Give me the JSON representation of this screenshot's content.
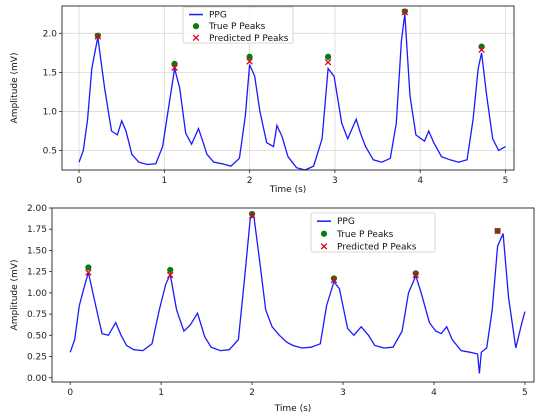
{
  "chart_data": [
    {
      "type": "line",
      "xlabel": "Time (s)",
      "ylabel": "Amplitude (mV)",
      "xlim": [
        -0.2,
        5.1
      ],
      "ylim": [
        0.25,
        2.35
      ],
      "xticks": [
        "0",
        "1",
        "2",
        "3",
        "4",
        "5"
      ],
      "xtick_values": [
        0,
        1,
        2,
        3,
        4,
        5
      ],
      "yticks": [
        "0.5",
        "1.0",
        "1.5",
        "2.0"
      ],
      "ytick_values": [
        0.5,
        1.0,
        1.5,
        2.0
      ],
      "grid": true,
      "legend_position": "top-center",
      "colors": {
        "ppg": "#1a1aff",
        "true_peaks": "#0a7a12",
        "predicted_peaks": "#e0001a"
      },
      "series": [
        {
          "name": "PPG",
          "kind": "line",
          "x": [
            0.0,
            0.05,
            0.1,
            0.15,
            0.22,
            0.3,
            0.38,
            0.45,
            0.5,
            0.55,
            0.62,
            0.7,
            0.8,
            0.9,
            0.98,
            1.05,
            1.12,
            1.18,
            1.25,
            1.32,
            1.4,
            1.45,
            1.5,
            1.58,
            1.68,
            1.78,
            1.88,
            1.95,
            2.0,
            2.06,
            2.12,
            2.2,
            2.28,
            2.32,
            2.38,
            2.45,
            2.55,
            2.65,
            2.75,
            2.85,
            2.92,
            2.99,
            3.08,
            3.15,
            3.25,
            3.3,
            3.36,
            3.45,
            3.55,
            3.65,
            3.72,
            3.78,
            3.82,
            3.88,
            3.95,
            4.05,
            4.1,
            4.16,
            4.25,
            4.35,
            4.45,
            4.55,
            4.62,
            4.68,
            4.72,
            4.78,
            4.85,
            4.92,
            5.0
          ],
          "values": [
            0.35,
            0.5,
            0.9,
            1.55,
            1.95,
            1.3,
            0.75,
            0.7,
            0.88,
            0.75,
            0.45,
            0.35,
            0.32,
            0.33,
            0.55,
            1.05,
            1.55,
            1.3,
            0.72,
            0.58,
            0.78,
            0.62,
            0.45,
            0.35,
            0.33,
            0.3,
            0.4,
            0.95,
            1.6,
            1.45,
            1.0,
            0.6,
            0.55,
            0.82,
            0.68,
            0.42,
            0.28,
            0.25,
            0.3,
            0.65,
            1.55,
            1.45,
            0.85,
            0.65,
            0.9,
            0.72,
            0.55,
            0.38,
            0.35,
            0.4,
            0.85,
            1.9,
            2.25,
            1.2,
            0.7,
            0.62,
            0.75,
            0.6,
            0.42,
            0.38,
            0.35,
            0.38,
            0.9,
            1.55,
            1.75,
            1.2,
            0.65,
            0.5,
            0.55
          ]
        },
        {
          "name": "True P Peaks",
          "kind": "scatter",
          "x": [
            0.22,
            1.12,
            2.0,
            2.92,
            3.82,
            4.72
          ],
          "values": [
            1.97,
            1.61,
            1.7,
            1.7,
            2.28,
            1.83
          ]
        },
        {
          "name": "Predicted P Peaks",
          "kind": "scatter",
          "x": [
            0.22,
            1.12,
            2.0,
            2.92,
            3.82,
            4.72
          ],
          "values": [
            1.96,
            1.56,
            1.64,
            1.63,
            2.27,
            1.79
          ]
        }
      ]
    },
    {
      "type": "line",
      "xlabel": "Time (s)",
      "ylabel": "Amplitude (mV)",
      "xlim": [
        -0.2,
        5.1
      ],
      "ylim": [
        -0.05,
        2.0
      ],
      "xticks": [
        "0",
        "1",
        "2",
        "3",
        "4",
        "5"
      ],
      "xtick_values": [
        0,
        1,
        2,
        3,
        4,
        5
      ],
      "yticks": [
        "0.00",
        "0.25",
        "0.50",
        "0.75",
        "1.00",
        "1.25",
        "1.50",
        "1.75",
        "2.00"
      ],
      "ytick_values": [
        0.0,
        0.25,
        0.5,
        0.75,
        1.0,
        1.25,
        1.5,
        1.75,
        2.0
      ],
      "grid": false,
      "legend_position": "top-right",
      "colors": {
        "ppg": "#1a1aff",
        "true_peaks": "#0a7a12",
        "predicted_peaks": "#e0001a"
      },
      "series": [
        {
          "name": "PPG",
          "kind": "line",
          "x": [
            0.0,
            0.05,
            0.1,
            0.15,
            0.2,
            0.28,
            0.35,
            0.42,
            0.5,
            0.56,
            0.62,
            0.7,
            0.8,
            0.9,
            0.98,
            1.05,
            1.1,
            1.17,
            1.25,
            1.32,
            1.4,
            1.48,
            1.55,
            1.65,
            1.75,
            1.85,
            1.92,
            1.98,
            2.02,
            2.08,
            2.15,
            2.22,
            2.3,
            2.38,
            2.45,
            2.55,
            2.65,
            2.75,
            2.82,
            2.9,
            2.96,
            3.05,
            3.12,
            3.2,
            3.28,
            3.35,
            3.45,
            3.55,
            3.65,
            3.72,
            3.8,
            3.86,
            3.95,
            4.02,
            4.08,
            4.14,
            4.2,
            4.3,
            4.4,
            4.48,
            4.5,
            4.52,
            4.58,
            4.64,
            4.7,
            4.76,
            4.82,
            4.9,
            4.96,
            5.0
          ],
          "values": [
            0.3,
            0.45,
            0.85,
            1.05,
            1.24,
            0.85,
            0.52,
            0.5,
            0.65,
            0.5,
            0.38,
            0.33,
            0.32,
            0.4,
            0.8,
            1.1,
            1.22,
            0.8,
            0.55,
            0.62,
            0.76,
            0.48,
            0.36,
            0.32,
            0.33,
            0.45,
            1.2,
            1.88,
            1.9,
            1.4,
            0.8,
            0.6,
            0.5,
            0.42,
            0.38,
            0.35,
            0.36,
            0.4,
            0.85,
            1.13,
            1.05,
            0.58,
            0.5,
            0.6,
            0.5,
            0.38,
            0.35,
            0.36,
            0.55,
            1.0,
            1.2,
            1.0,
            0.65,
            0.55,
            0.52,
            0.6,
            0.45,
            0.32,
            0.3,
            0.28,
            0.05,
            0.3,
            0.35,
            0.8,
            1.55,
            1.7,
            0.95,
            0.35,
            0.62,
            0.78
          ]
        },
        {
          "name": "True P Peaks",
          "kind": "scatter",
          "x": [
            0.2,
            1.1,
            2.0,
            2.9,
            3.8,
            4.7
          ],
          "values": [
            1.3,
            1.27,
            1.93,
            1.17,
            1.23,
            1.73
          ]
        },
        {
          "name": "Predicted P Peaks",
          "kind": "scatter",
          "x": [
            0.2,
            1.1,
            2.0,
            2.9,
            3.8,
            4.7
          ],
          "values": [
            1.24,
            1.21,
            1.91,
            1.15,
            1.21,
            1.73
          ]
        }
      ]
    }
  ]
}
